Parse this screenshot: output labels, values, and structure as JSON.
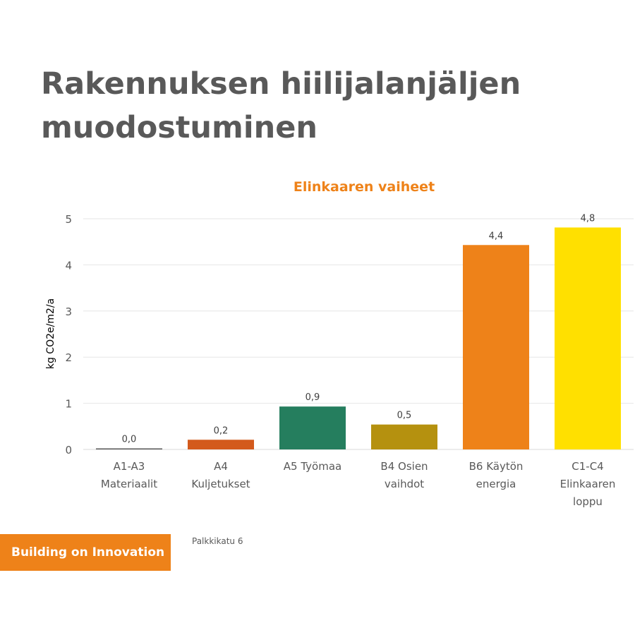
{
  "slide": {
    "title_lines": [
      "Rakennuksen hiilijalanjäljen",
      "muodostuminen"
    ],
    "brand_label": "Building on Innovation",
    "footer_address": "Palkkikatu 6"
  },
  "chart_data": {
    "type": "bar",
    "title": "Elinkaaren vaiheet",
    "ylabel": "kg CO2e/m2/a",
    "xlabel": "",
    "ylim": [
      0,
      5
    ],
    "yticks": [
      0,
      1,
      2,
      3,
      4,
      5
    ],
    "grid": true,
    "categories": [
      [
        "A1-A3",
        "Materiaalit"
      ],
      [
        "A4",
        "Kuljetukset"
      ],
      [
        "A5 Työmaa"
      ],
      [
        "B4 Osien",
        "vaihdot"
      ],
      [
        "B6 Käytön",
        "energia"
      ],
      [
        "C1-C4",
        "Elinkaaren",
        "loppu"
      ]
    ],
    "values": [
      0.02,
      0.21,
      0.93,
      0.54,
      4.43,
      4.81
    ],
    "data_labels": [
      "0,0",
      "0,2",
      "0,9",
      "0,5",
      "4,4",
      "4,8"
    ],
    "colors": [
      "#595959",
      "#d35a1c",
      "#257e5e",
      "#b5910f",
      "#ee8219",
      "#ffe000"
    ],
    "title_color": "#ee8219"
  }
}
